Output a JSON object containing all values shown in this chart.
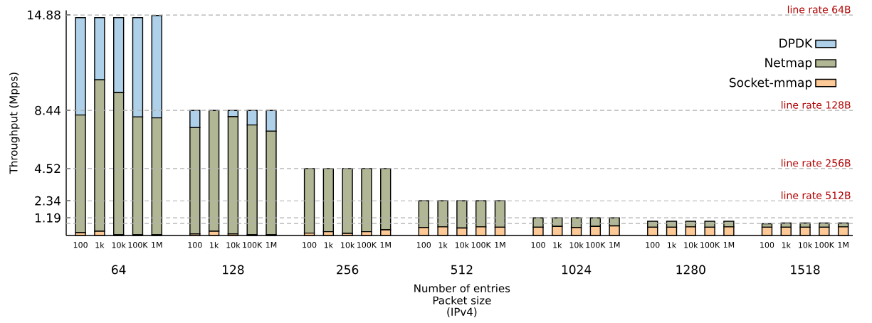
{
  "chart_data": {
    "type": "bar",
    "stacked": true,
    "ylabel": "Throughput (Mpps)",
    "xlabel": "Number of entries",
    "categories": [
      "100",
      "1k",
      "10k",
      "100K",
      "1M",
      null,
      "100",
      "1k",
      "10k",
      "100K",
      "1M",
      null,
      "100",
      "1k",
      "10k",
      "100K",
      "1M",
      null,
      "100",
      "1k",
      "10k",
      "100K",
      "1M",
      null,
      "100",
      "1k",
      "10k",
      "100K",
      "1M",
      null,
      "100",
      "1k",
      "10k",
      "100K",
      "1M",
      null,
      "100",
      "1k",
      "10k",
      "100K",
      "1M"
    ],
    "series": [
      {
        "name": "Socket-mmap",
        "color": "#fdc996",
        "values": [
          0.19,
          0.29,
          0.05,
          0.05,
          0.05,
          null,
          0.11,
          0.29,
          0.11,
          0.05,
          0.05,
          null,
          0.16,
          0.26,
          0.14,
          0.26,
          0.38,
          null,
          0.54,
          0.58,
          0.5,
          0.58,
          0.56,
          null,
          0.56,
          0.61,
          0.54,
          0.61,
          0.65,
          null,
          0.56,
          0.56,
          0.58,
          0.56,
          0.58,
          null,
          0.56,
          0.56,
          0.56,
          0.56,
          0.58
        ]
      },
      {
        "name": "Netmap",
        "color": "#b1b794",
        "values": [
          7.94,
          10.22,
          9.6,
          7.95,
          7.89,
          null,
          7.17,
          8.15,
          7.91,
          7.41,
          6.99,
          null,
          4.36,
          4.26,
          4.38,
          4.26,
          4.14,
          null,
          1.8,
          1.76,
          1.84,
          1.76,
          1.78,
          null,
          0.63,
          0.58,
          0.65,
          0.58,
          0.54,
          null,
          0.4,
          0.4,
          0.38,
          0.4,
          0.38,
          null,
          0.23,
          0.28,
          0.28,
          0.28,
          0.26
        ]
      },
      {
        "name": "DPDK",
        "color": "#aed1e9",
        "values": [
          6.57,
          4.19,
          5.05,
          6.7,
          6.91,
          null,
          1.16,
          0,
          0.42,
          0.98,
          1.4,
          null,
          0,
          0,
          0,
          0,
          0,
          null,
          0,
          0,
          0,
          0,
          0,
          null,
          0,
          0,
          0,
          0,
          0,
          null,
          0,
          0,
          0,
          0,
          0,
          null,
          0,
          0,
          0,
          0,
          0
        ]
      }
    ],
    "ylim": [
      0,
      15.2
    ],
    "yticks": [
      1.19,
      2.34,
      4.52,
      8.44,
      14.88
    ],
    "ref_lines": [
      {
        "axis": "y",
        "value": 14.88,
        "label": "line rate 64B",
        "color": "#b0b0b0",
        "line_style": "dashed"
      },
      {
        "axis": "y",
        "value": 8.44,
        "label": "line rate 128B",
        "color": "#b0b0b0",
        "line_style": "dashed"
      },
      {
        "axis": "y",
        "value": 4.52,
        "label": "line rate 256B",
        "color": "#b0b0b0",
        "line_style": "dashed"
      },
      {
        "axis": "y",
        "value": 2.34,
        "label": "line rate 512B",
        "color": "#b0b0b0",
        "line_style": "dashed"
      },
      {
        "axis": "y",
        "value": 1.19,
        "color": "#b0b0b0",
        "line_style": "dashed"
      },
      {
        "axis": "y",
        "value": 0.81,
        "color": "#b0b0b0",
        "line_style": "dashed"
      }
    ],
    "annotations": [
      "64",
      "128",
      "256",
      "512",
      "1024",
      "1280",
      "1518",
      "Packet size",
      "(IPv4)"
    ],
    "legend": "top right"
  }
}
